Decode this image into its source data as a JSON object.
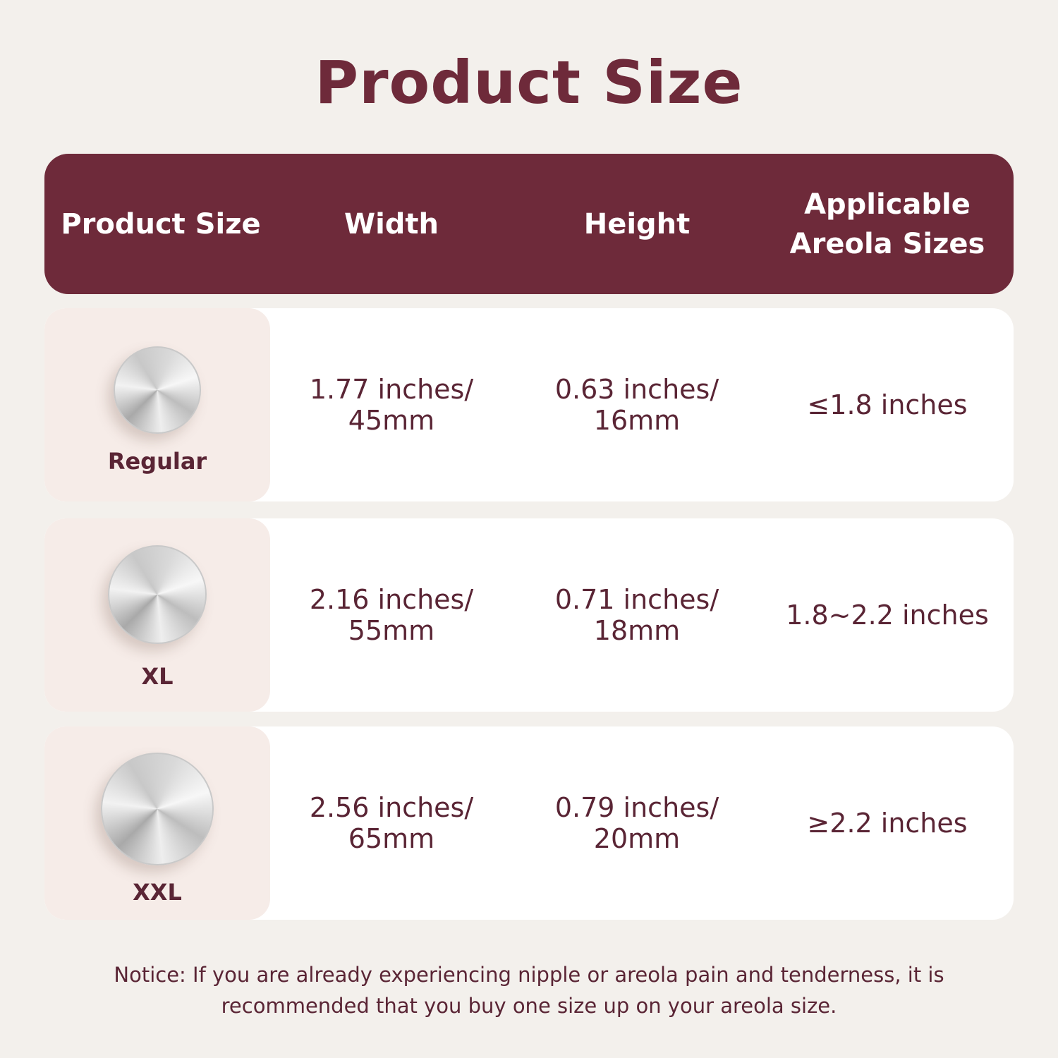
{
  "title": "Product Size",
  "header": [
    "Product Size",
    "Width",
    "Height",
    "Applicable Areola Sizes"
  ],
  "rows": [
    {
      "size": "Regular",
      "width": "1.77 inches/ 45mm",
      "height": "0.63 inches/ 16mm",
      "areola": "≤1.8 inches"
    },
    {
      "size": "XL",
      "width": "2.16 inches/ 55mm",
      "height": "0.71 inches/ 18mm",
      "areola": "1.8~2.2 inches"
    },
    {
      "size": "XXL",
      "width": "2.56 inches/ 65mm",
      "height": "0.79 inches/ 20mm",
      "areola": "≥2.2 inches"
    }
  ],
  "notice": "Notice: If you are already experiencing nipple or areola pain and tenderness, it is recommended that you buy one size up on your areola size.",
  "colors": {
    "accent": "#6e2a3a",
    "text": "#5a2535",
    "background": "#f3f0ec",
    "size_cell": "#f6ece8"
  }
}
